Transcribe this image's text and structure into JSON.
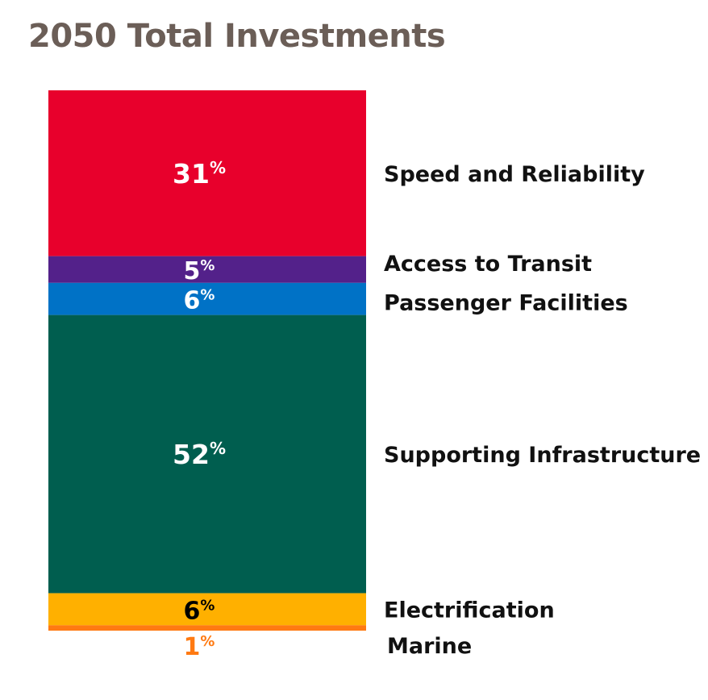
{
  "chart_data": {
    "type": "bar",
    "stacked": true,
    "title": "2050 Total Investments",
    "unit": "%",
    "categories": [
      "Speed and Reliability",
      "Access to Transit",
      "Passenger Facilities",
      "Supporting Infrastructure",
      "Electrification",
      "Marine"
    ],
    "series": [
      {
        "category": "Speed and Reliability",
        "value": 31,
        "color": "#e8002c",
        "label_color": "#ffffff"
      },
      {
        "category": "Access to Transit",
        "value": 5,
        "color": "#53218a",
        "label_color": "#ffffff"
      },
      {
        "category": "Passenger Facilities",
        "value": 6,
        "color": "#0072c6",
        "label_color": "#ffffff"
      },
      {
        "category": "Supporting Infrastructure",
        "value": 52,
        "color": "#005e4f",
        "label_color": "#ffffff"
      },
      {
        "category": "Electrification",
        "value": 6,
        "color": "#ffb000",
        "label_color": "#000000"
      },
      {
        "category": "Marine",
        "value": 1,
        "color": "#ff7a12",
        "label_color": "#ff7a12"
      }
    ],
    "legend_position": "right",
    "grid": false
  }
}
